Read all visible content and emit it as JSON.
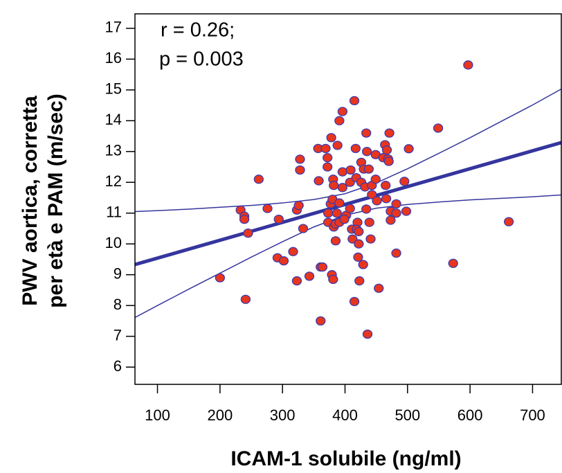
{
  "chart_data": {
    "type": "scatter",
    "annotations": [
      "r = 0.26;",
      "p = 0.003"
    ],
    "xlabel": "ICAM-1 solubile (ng/ml)",
    "ylabel": [
      "PWV aortica, corretta",
      "per età e PAM (m/sec)"
    ],
    "xlim": [
      64,
      746
    ],
    "ylim": [
      5.44,
      17.47
    ],
    "xticks": [
      100,
      200,
      300,
      400,
      500,
      600,
      700
    ],
    "yticks": [
      6,
      7,
      8,
      9,
      10,
      11,
      12,
      13,
      14,
      15,
      16,
      17
    ],
    "color": "#e8351e",
    "edgecolor": "#3a3ab0",
    "line_color": "#35359e",
    "x": [
      200,
      241,
      233,
      239,
      239,
      245,
      262,
      276,
      294,
      292,
      302,
      317,
      323,
      323,
      326,
      328,
      328,
      333,
      343,
      357,
      369,
      358,
      361,
      364,
      361,
      372,
      372,
      373,
      373,
      378,
      377,
      380,
      381,
      382,
      382,
      379,
      381,
      385,
      385,
      387,
      388,
      391,
      391,
      391,
      396,
      396,
      396,
      402,
      399,
      408,
      408,
      409,
      411,
      412,
      415,
      415,
      417,
      418,
      420,
      419,
      422,
      421,
      422,
      423,
      426,
      426,
      429,
      430,
      432,
      434,
      434,
      435,
      436,
      438,
      439,
      441,
      443,
      443,
      449,
      449,
      451,
      454,
      461,
      464,
      465,
      466,
      467,
      469,
      470,
      471,
      473,
      473,
      482,
      482,
      482,
      495,
      498,
      502,
      549,
      597,
      573,
      662
    ],
    "values": [
      8.9,
      8.2,
      11.1,
      10.9,
      10.8,
      10.35,
      12.1,
      11.15,
      10.8,
      9.55,
      9.45,
      9.75,
      8.8,
      11.1,
      11.25,
      12.75,
      12.4,
      10.5,
      8.95,
      13.1,
      13.1,
      12.05,
      9.25,
      9.25,
      7.5,
      12.8,
      12.5,
      10.7,
      11.0,
      13.45,
      11.3,
      11.45,
      12.1,
      11.9,
      10.55,
      9.0,
      8.85,
      10.1,
      10.65,
      11.0,
      13.2,
      10.7,
      11.33,
      14.0,
      14.3,
      11.83,
      12.34,
      10.93,
      10.8,
      12.0,
      11.15,
      12.4,
      10.48,
      10.16,
      8.13,
      14.65,
      13.1,
      12.15,
      10.7,
      10.47,
      10.0,
      9.57,
      10.4,
      8.8,
      12.0,
      12.65,
      9.33,
      12.43,
      11.85,
      13.6,
      11.13,
      13.0,
      7.07,
      12.43,
      10.7,
      10.16,
      11.6,
      11.9,
      12.9,
      12.1,
      11.4,
      8.56,
      12.8,
      13.22,
      11.9,
      11.47,
      13.05,
      12.76,
      12.68,
      13.6,
      11.06,
      10.77,
      11.3,
      11.0,
      9.7,
      12.03,
      11.06,
      13.09,
      13.76,
      15.81,
      9.37,
      10.72
    ],
    "lines": [
      {
        "width": 5,
        "x": [
          64,
          746
        ],
        "values": [
          9.33,
          13.29
        ]
      },
      {
        "width": 1.5,
        "x": [
          64,
          100,
          150,
          200,
          250,
          300,
          350,
          400,
          450,
          500,
          550,
          600,
          650,
          700,
          746
        ],
        "values": [
          11.05,
          11.08,
          11.13,
          11.19,
          11.25,
          11.33,
          11.44,
          11.63,
          11.98,
          12.44,
          12.94,
          13.45,
          13.98,
          14.51,
          15.03
        ]
      },
      {
        "width": 1.5,
        "x": [
          64,
          100,
          150,
          200,
          250,
          300,
          350,
          400,
          450,
          500,
          550,
          600,
          650,
          700,
          746
        ],
        "values": [
          7.61,
          8.0,
          8.53,
          9.05,
          9.57,
          10.07,
          10.55,
          10.93,
          11.16,
          11.28,
          11.36,
          11.43,
          11.48,
          11.53,
          11.59
        ]
      }
    ]
  }
}
